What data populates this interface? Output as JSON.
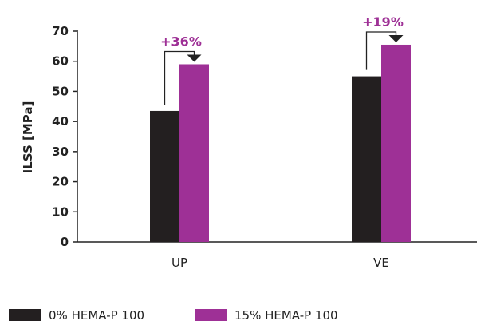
{
  "colors": {
    "series_0": "#231f20",
    "series_1": "#9e3096",
    "axis": "#222222",
    "annotation": "#9e3096"
  },
  "chart_data": {
    "type": "bar",
    "title": "",
    "xlabel": "",
    "ylabel": "ILSS [MPa]",
    "ylim": [
      0,
      70
    ],
    "yticks": [
      0,
      10,
      20,
      30,
      40,
      50,
      60,
      70
    ],
    "categories": [
      "UP",
      "VE"
    ],
    "series": [
      {
        "name": "0% HEMA-P 100",
        "values": [
          43.5,
          55
        ]
      },
      {
        "name": "15% HEMA-P 100",
        "values": [
          59,
          65.5
        ]
      }
    ],
    "annotations": [
      {
        "category": "UP",
        "text": "+36%"
      },
      {
        "category": "VE",
        "text": "+19%"
      }
    ],
    "grid": false,
    "legend": "bottom-left"
  }
}
